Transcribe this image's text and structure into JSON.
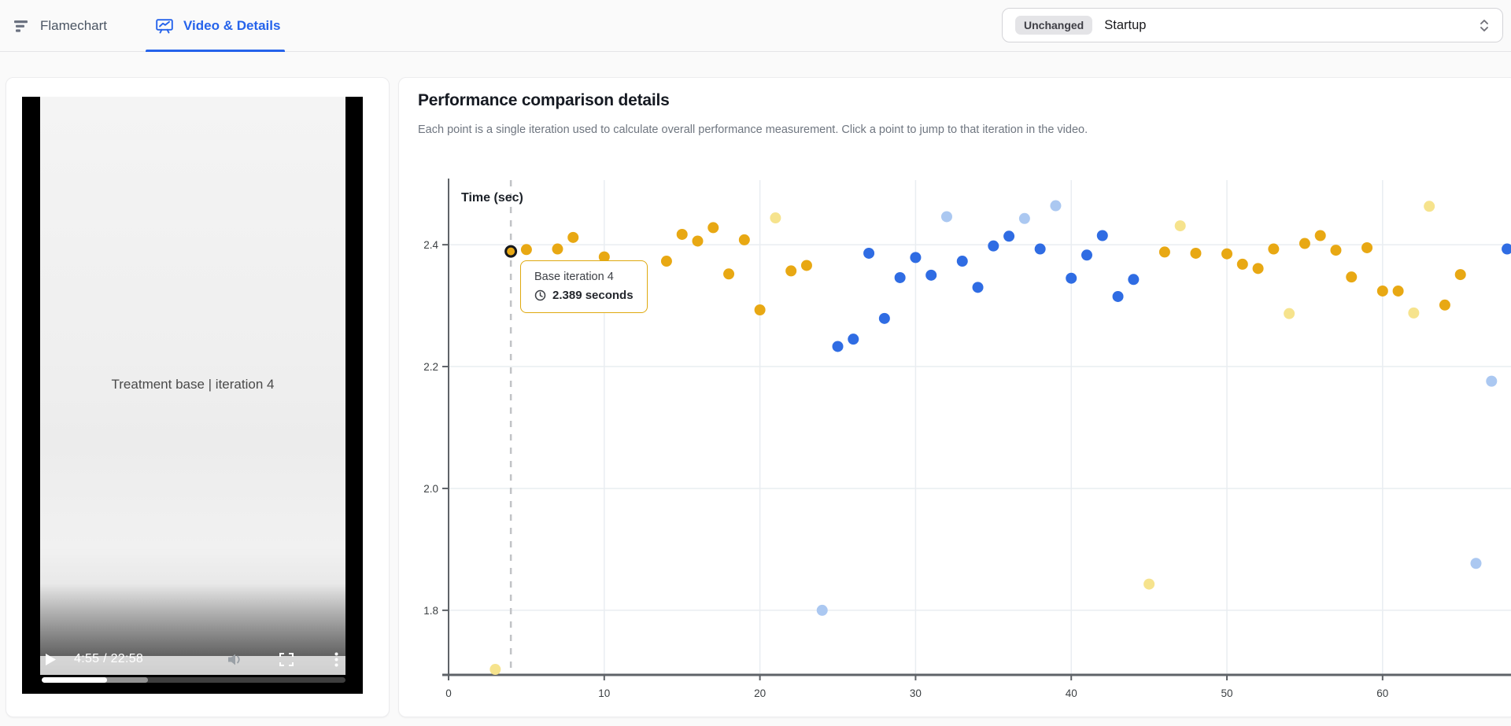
{
  "topbar": {
    "tabs": [
      {
        "label": "Flamechart",
        "active": false
      },
      {
        "label": "Video & Details",
        "active": true
      }
    ],
    "selector": {
      "badge": "Unchanged",
      "value": "Startup"
    }
  },
  "video_panel": {
    "overlay_title": "Treatment base | iteration 4",
    "time_display": "4:55 / 22:58",
    "progress_percent": 21.4,
    "buffered_percent": 35
  },
  "details_panel": {
    "title": "Performance comparison details",
    "subtitle": "Each point is a single iteration used to calculate overall performance measurement. Click a point to jump to that iteration in the video."
  },
  "tooltip": {
    "title": "Base iteration 4",
    "value": "2.389 seconds"
  },
  "colors": {
    "accent": "#2563EB",
    "tooltip_border": "#DFA90F",
    "grid": "#E9EDF1",
    "axis": "#5F6368",
    "tick_text": "#3C4043",
    "marker_line": "#C1C3C6"
  },
  "chart_data": {
    "type": "scatter",
    "ylabel": "Time (sec)",
    "xlim": [
      0,
      68.3
    ],
    "ylim": [
      1.694,
      2.506
    ],
    "grid": true,
    "x_ticks": [
      {
        "v": 0,
        "label": "0"
      },
      {
        "v": 10,
        "label": "10"
      },
      {
        "v": 20,
        "label": "20"
      },
      {
        "v": 30,
        "label": "30"
      },
      {
        "v": 40,
        "label": "40"
      },
      {
        "v": 50,
        "label": "50"
      },
      {
        "v": 60,
        "label": "60"
      }
    ],
    "y_ticks": [
      {
        "v": 2.4,
        "label": "2.4"
      },
      {
        "v": 2.2,
        "label": "2.2"
      },
      {
        "v": 2.0,
        "label": "2.0"
      },
      {
        "v": 1.8,
        "label": "1.8"
      }
    ],
    "marker_x": 4,
    "selected": {
      "series": "base",
      "x": 4,
      "y": 2.389
    },
    "series": [
      {
        "name": "base",
        "color": "#E8A813",
        "points": [
          [
            4,
            2.389
          ],
          [
            5,
            2.392
          ],
          [
            7,
            2.393
          ],
          [
            8,
            2.412
          ],
          [
            10,
            2.38
          ],
          [
            14,
            2.373
          ],
          [
            15,
            2.417
          ],
          [
            16,
            2.406
          ],
          [
            17,
            2.428
          ],
          [
            18,
            2.352
          ],
          [
            19,
            2.408
          ],
          [
            20,
            2.293
          ],
          [
            22,
            2.357
          ],
          [
            23,
            2.366
          ],
          [
            46,
            2.388
          ],
          [
            48,
            2.386
          ],
          [
            50,
            2.385
          ],
          [
            51,
            2.368
          ],
          [
            52,
            2.361
          ],
          [
            53,
            2.393
          ],
          [
            55,
            2.402
          ],
          [
            56,
            2.415
          ],
          [
            57,
            2.391
          ],
          [
            58,
            2.347
          ],
          [
            59,
            2.395
          ],
          [
            60,
            2.324
          ],
          [
            61,
            2.324
          ],
          [
            64,
            2.301
          ],
          [
            65,
            2.351
          ]
        ]
      },
      {
        "name": "base-outlier",
        "color": "#F6E38D",
        "points": [
          [
            3,
            1.703
          ],
          [
            21,
            2.444
          ],
          [
            45,
            1.843
          ],
          [
            47,
            2.431
          ],
          [
            54,
            2.287
          ],
          [
            62,
            2.288
          ],
          [
            63,
            2.463
          ]
        ]
      },
      {
        "name": "treatment",
        "color": "#2F6CE3",
        "points": [
          [
            25,
            2.233
          ],
          [
            26,
            2.245
          ],
          [
            27,
            2.386
          ],
          [
            28,
            2.279
          ],
          [
            29,
            2.346
          ],
          [
            30,
            2.379
          ],
          [
            31,
            2.35
          ],
          [
            33,
            2.373
          ],
          [
            34,
            2.33
          ],
          [
            35,
            2.398
          ],
          [
            36,
            2.414
          ],
          [
            38,
            2.393
          ],
          [
            40,
            2.345
          ],
          [
            41,
            2.383
          ],
          [
            42,
            2.415
          ],
          [
            43,
            2.315
          ],
          [
            44,
            2.343
          ],
          [
            68,
            2.393
          ]
        ]
      },
      {
        "name": "treatment-outlier",
        "color": "#ABC8F1",
        "points": [
          [
            24,
            1.8
          ],
          [
            32,
            2.446
          ],
          [
            37,
            2.443
          ],
          [
            39,
            2.464
          ],
          [
            66,
            1.877
          ],
          [
            67,
            2.176
          ]
        ]
      }
    ]
  }
}
